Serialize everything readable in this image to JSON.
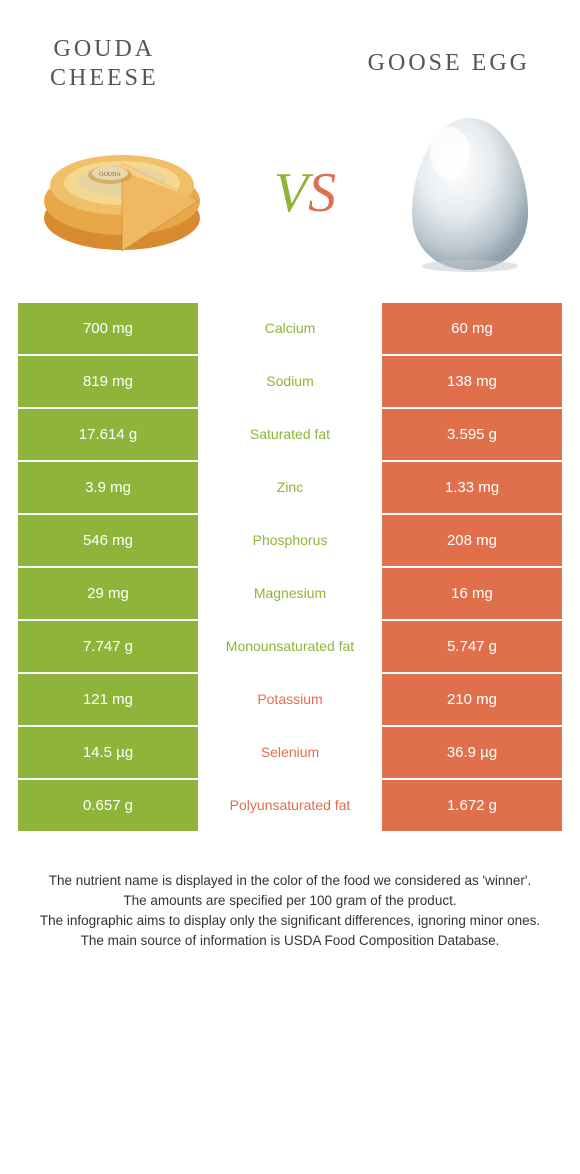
{
  "colors": {
    "left": "#8fb43a",
    "right": "#e06f4c",
    "title": "#555555",
    "footer": "#333333"
  },
  "header": {
    "left_line1": "GOUDA",
    "left_line2": "CHEESE",
    "right": "GOOSE EGG",
    "vs_v": "V",
    "vs_s": "S"
  },
  "rows": [
    {
      "left": "700 mg",
      "label": "Calcium",
      "right": "60 mg",
      "winner": "left"
    },
    {
      "left": "819 mg",
      "label": "Sodium",
      "right": "138 mg",
      "winner": "left"
    },
    {
      "left": "17.614 g",
      "label": "Saturated fat",
      "right": "3.595 g",
      "winner": "left"
    },
    {
      "left": "3.9 mg",
      "label": "Zinc",
      "right": "1.33 mg",
      "winner": "left"
    },
    {
      "left": "546 mg",
      "label": "Phosphorus",
      "right": "208 mg",
      "winner": "left"
    },
    {
      "left": "29 mg",
      "label": "Magnesium",
      "right": "16 mg",
      "winner": "left"
    },
    {
      "left": "7.747 g",
      "label": "Monounsaturated fat",
      "right": "5.747 g",
      "winner": "left"
    },
    {
      "left": "121 mg",
      "label": "Potassium",
      "right": "210 mg",
      "winner": "right"
    },
    {
      "left": "14.5 µg",
      "label": "Selenium",
      "right": "36.9 µg",
      "winner": "right"
    },
    {
      "left": "0.657 g",
      "label": "Polyunsaturated fat",
      "right": "1.672 g",
      "winner": "right"
    }
  ],
  "footer": {
    "line1": "The nutrient name is displayed in the color of the food we considered as 'winner'.",
    "line2": "The amounts are specified per 100 gram of the product.",
    "line3": "The infographic aims to display only the significant differences, ignoring minor ones.",
    "line4": "The main source of information is USDA Food Composition Database."
  }
}
